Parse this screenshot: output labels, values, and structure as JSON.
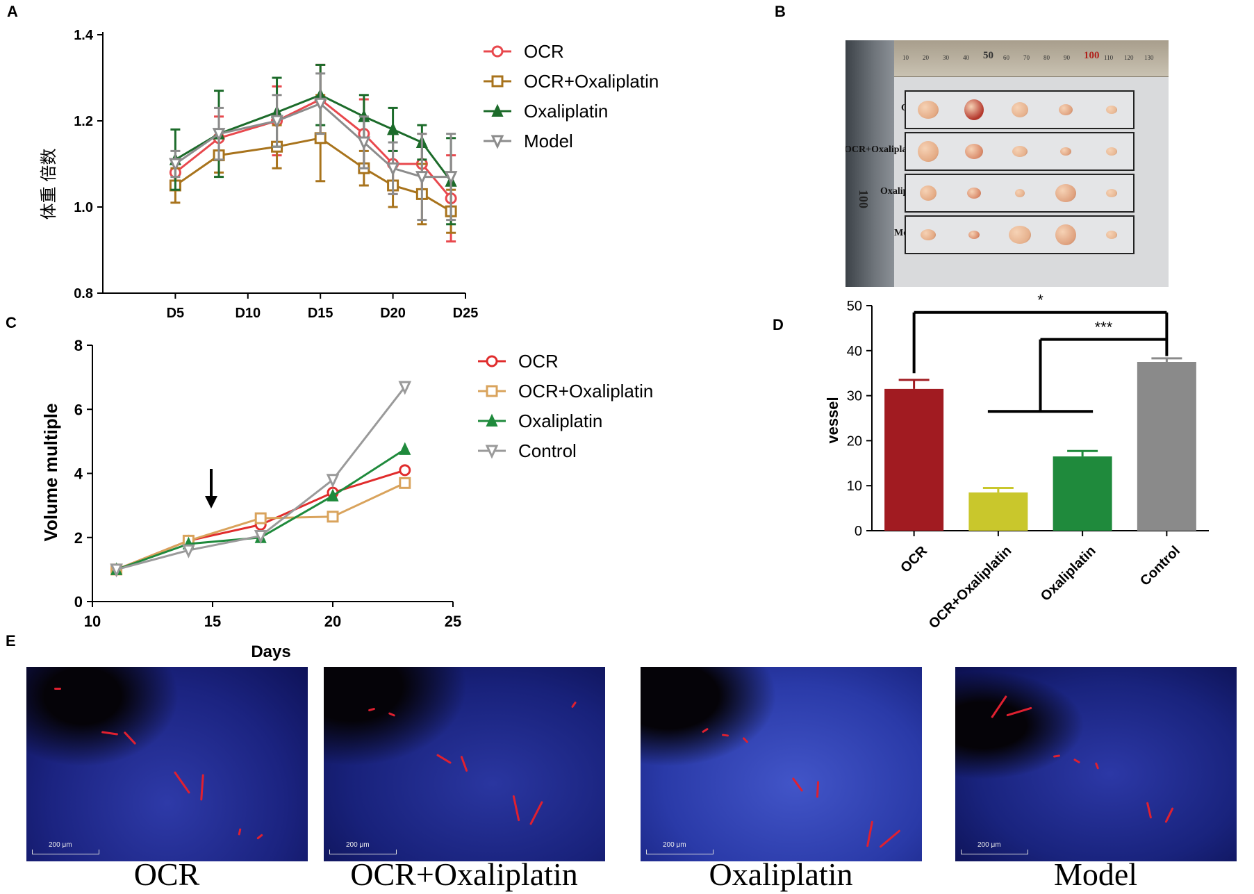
{
  "panels": {
    "a": "A",
    "b": "B",
    "c": "C",
    "d": "D",
    "e": "E"
  },
  "chart_data": [
    {
      "type": "line",
      "title": "",
      "xlabel": "",
      "ylabel": "体重 倍数",
      "ylim": [
        0.8,
        1.4
      ],
      "yticks": [
        "0.8",
        "1.0",
        "1.2",
        "1.4"
      ],
      "xticks": [
        "D5",
        "D10",
        "D15",
        "D20",
        "D25"
      ],
      "x": [
        5,
        10,
        15,
        20,
        25
      ],
      "xlim": [
        0,
        25
      ],
      "legend_position": "right",
      "series": [
        {
          "name": "OCR",
          "color": "#e8484d",
          "marker": "circle",
          "x": [
            5,
            8,
            12,
            15,
            18,
            20,
            22,
            24
          ],
          "values": [
            1.08,
            1.16,
            1.2,
            1.25,
            1.17,
            1.1,
            1.1,
            1.02
          ],
          "err": [
            0.03,
            0.05,
            0.08,
            0.08,
            0.08,
            0.07,
            0.07,
            0.1
          ]
        },
        {
          "name": "OCR+Oxaliplatin",
          "color": "#a8731c",
          "marker": "square",
          "x": [
            5,
            8,
            12,
            15,
            18,
            20,
            22,
            24
          ],
          "values": [
            1.05,
            1.12,
            1.14,
            1.16,
            1.09,
            1.05,
            1.03,
            0.99
          ],
          "err": [
            0.04,
            0.04,
            0.05,
            0.1,
            0.04,
            0.05,
            0.07,
            0.05
          ]
        },
        {
          "name": "Oxaliplatin",
          "color": "#1c6b2a",
          "marker": "triangle-up",
          "x": [
            5,
            8,
            12,
            15,
            18,
            20,
            22,
            24
          ],
          "values": [
            1.11,
            1.17,
            1.22,
            1.26,
            1.21,
            1.18,
            1.15,
            1.06
          ],
          "err": [
            0.07,
            0.1,
            0.08,
            0.07,
            0.05,
            0.05,
            0.04,
            0.1
          ]
        },
        {
          "name": "Model",
          "color": "#8c8c8c",
          "marker": "triangle-down",
          "x": [
            5,
            8,
            12,
            15,
            18,
            20,
            22,
            24
          ],
          "values": [
            1.1,
            1.17,
            1.2,
            1.24,
            1.15,
            1.09,
            1.07,
            1.07
          ],
          "err": [
            0.03,
            0.06,
            0.06,
            0.07,
            0.06,
            0.06,
            0.1,
            0.1
          ]
        }
      ]
    },
    {
      "type": "line",
      "title": "",
      "xlabel": "Days",
      "ylabel": "Volume multiple",
      "ylim": [
        0,
        8
      ],
      "xlim": [
        10,
        25
      ],
      "yticks": [
        "0",
        "2",
        "4",
        "6",
        "8"
      ],
      "xticks": [
        "10",
        "15",
        "20",
        "25"
      ],
      "annotation": "arrow at day 15",
      "legend_position": "right",
      "series": [
        {
          "name": "OCR",
          "color": "#e02c2c",
          "marker": "circle",
          "x": [
            11,
            14,
            17,
            20,
            23
          ],
          "values": [
            1.0,
            1.9,
            2.4,
            3.4,
            4.1
          ]
        },
        {
          "name": "OCR+Oxaliplatin",
          "color": "#d9a35c",
          "marker": "square",
          "x": [
            11,
            14,
            17,
            20,
            23
          ],
          "values": [
            1.0,
            1.9,
            2.6,
            2.65,
            3.7
          ]
        },
        {
          "name": "Oxaliplatin",
          "color": "#1f8a3c",
          "marker": "triangle-up",
          "x": [
            11,
            14,
            17,
            20,
            23
          ],
          "values": [
            1.0,
            1.8,
            2.0,
            3.3,
            4.75
          ]
        },
        {
          "name": "Control",
          "color": "#9a9a9a",
          "marker": "triangle-down",
          "x": [
            11,
            14,
            17,
            20,
            23
          ],
          "values": [
            1.0,
            1.6,
            2.05,
            3.8,
            6.7
          ]
        }
      ]
    },
    {
      "type": "bar",
      "title": "",
      "xlabel": "",
      "ylabel": "vessel",
      "ylim": [
        0,
        50
      ],
      "yticks": [
        "0",
        "10",
        "20",
        "30",
        "40",
        "50"
      ],
      "categories": [
        "OCR",
        "OCR+Oxaliplatin",
        "Oxaliplatin",
        "Control"
      ],
      "values": [
        31.5,
        8.5,
        16.5,
        37.5
      ],
      "err": [
        2.0,
        1.0,
        1.2,
        0.8
      ],
      "colors": [
        "#a11b21",
        "#c9c72c",
        "#1f8a3c",
        "#8a8a8a"
      ],
      "significance": [
        {
          "label": "*",
          "from": "OCR",
          "to": "Control",
          "level": 48.5
        },
        {
          "label": "***",
          "from": "OCR+Oxaliplatin & Oxaliplatin",
          "to": "Control",
          "level": 42.5
        }
      ]
    }
  ],
  "tumor_photo": {
    "rows": [
      "OCR",
      "OCR+Oxaliplatin",
      "Oxaliplatin",
      "Model"
    ],
    "ruler_labels": [
      "10",
      "20",
      "30",
      "40",
      "50",
      "60",
      "70",
      "80",
      "90",
      "100",
      "110",
      "120",
      "130"
    ],
    "side_label": "100"
  },
  "micrographs": {
    "captions": [
      "OCR",
      "OCR+Oxaliplatin",
      "Oxaliplatin",
      "Model"
    ],
    "scale_bar": "200 μm"
  }
}
